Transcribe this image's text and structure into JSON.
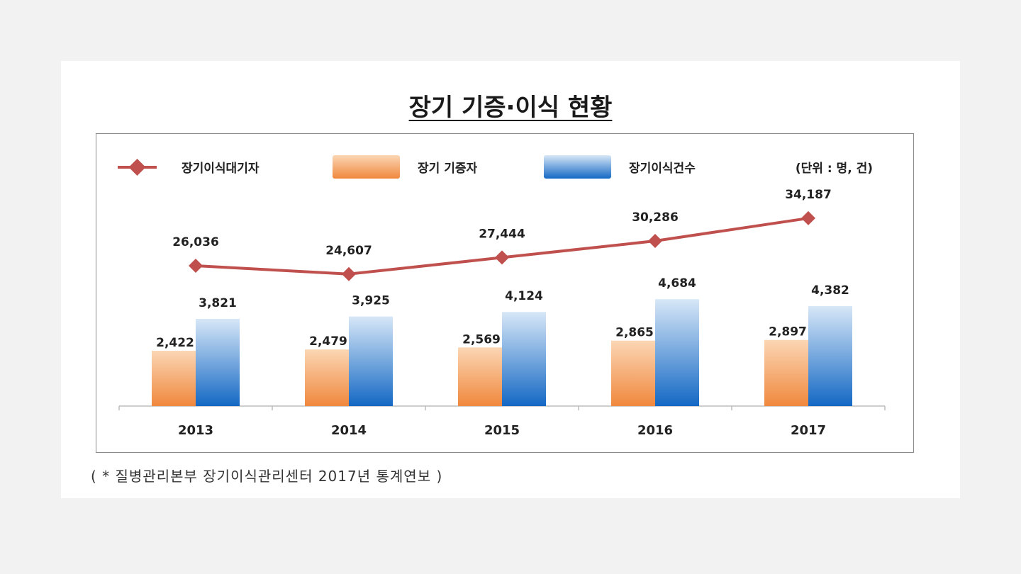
{
  "page": {
    "title": "장기 기증·이식 현황",
    "source": "( * 질병관리본부 장기이식관리센터 2017년 통계연보 )"
  },
  "colors": {
    "line": "#c0504d",
    "bar_donor_top": "#fbd6b4",
    "bar_donor_bottom": "#f0883d",
    "bar_transplant_top": "#d7e7f7",
    "bar_transplant_bottom": "#1468c4"
  },
  "chart_data": {
    "type": "bar",
    "unit_note": "(단위 : 명, 건)",
    "categories": [
      "2013",
      "2014",
      "2015",
      "2016",
      "2017"
    ],
    "series": [
      {
        "name": "장기이식대기자",
        "kind": "line",
        "values": [
          26036,
          24607,
          27444,
          30286,
          34187
        ],
        "labels": [
          "26,036",
          "24,607",
          "27,444",
          "30,286",
          "34,187"
        ]
      },
      {
        "name": "장기 기증자",
        "kind": "bar",
        "values": [
          2422,
          2479,
          2569,
          2865,
          2897
        ],
        "labels": [
          "2,422",
          "2,479",
          "2,569",
          "2,865",
          "2,897"
        ]
      },
      {
        "name": "장기이식건수",
        "kind": "bar",
        "values": [
          3821,
          3925,
          4124,
          4684,
          4382
        ],
        "labels": [
          "3,821",
          "3,925",
          "4,124",
          "4,684",
          "4,382"
        ]
      }
    ],
    "legend": "top",
    "grid": false
  }
}
